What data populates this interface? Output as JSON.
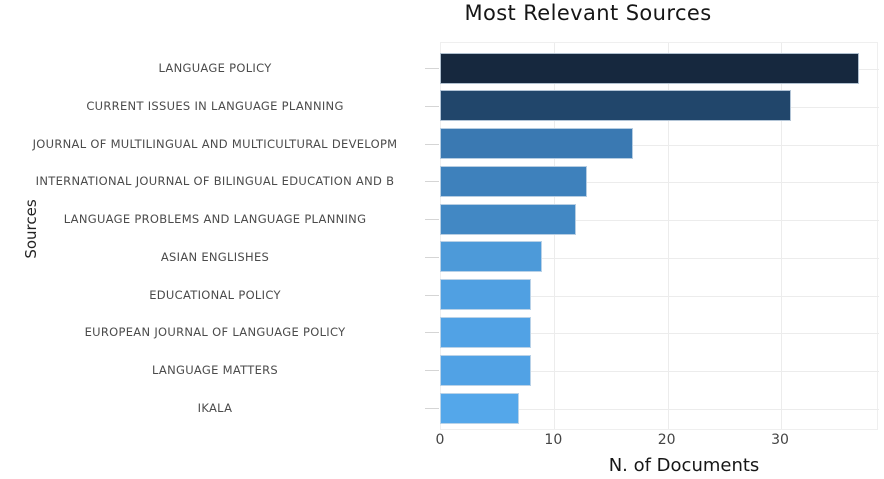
{
  "chart_data": {
    "type": "bar",
    "orientation": "horizontal",
    "title": "Most Relevant Sources",
    "xlabel": "N. of Documents",
    "ylabel": "Sources",
    "categories": [
      "LANGUAGE POLICY",
      "CURRENT ISSUES IN LANGUAGE PLANNING",
      "JOURNAL OF MULTILINGUAL AND MULTICULTURAL DEVELOPM",
      "INTERNATIONAL JOURNAL OF BILINGUAL EDUCATION AND B",
      "LANGUAGE PROBLEMS AND LANGUAGE PLANNING",
      "ASIAN ENGLISHES",
      "EDUCATIONAL POLICY",
      "EUROPEAN JOURNAL OF LANGUAGE POLICY",
      "LANGUAGE MATTERS",
      "IKALA"
    ],
    "values": [
      37,
      31,
      17,
      13,
      12,
      9,
      8,
      8,
      8,
      7
    ],
    "bar_colors": [
      "#16283E",
      "#21466B",
      "#3A79B2",
      "#3E81BC",
      "#4288C4",
      "#4D9AD9",
      "#50A0E2",
      "#51A2E5",
      "#51A2E5",
      "#54A7EA"
    ],
    "x_ticks": [
      0,
      10,
      20,
      30
    ],
    "xlim": [
      0,
      38.6
    ],
    "grid": true,
    "legend": false,
    "background": "#ffffff",
    "colors": {
      "gridline": "#ececec",
      "tick_mark": "#d5d5d5",
      "category_text": "#4b4b4b",
      "tick_text": "#444444",
      "title_text": "#161616"
    }
  }
}
